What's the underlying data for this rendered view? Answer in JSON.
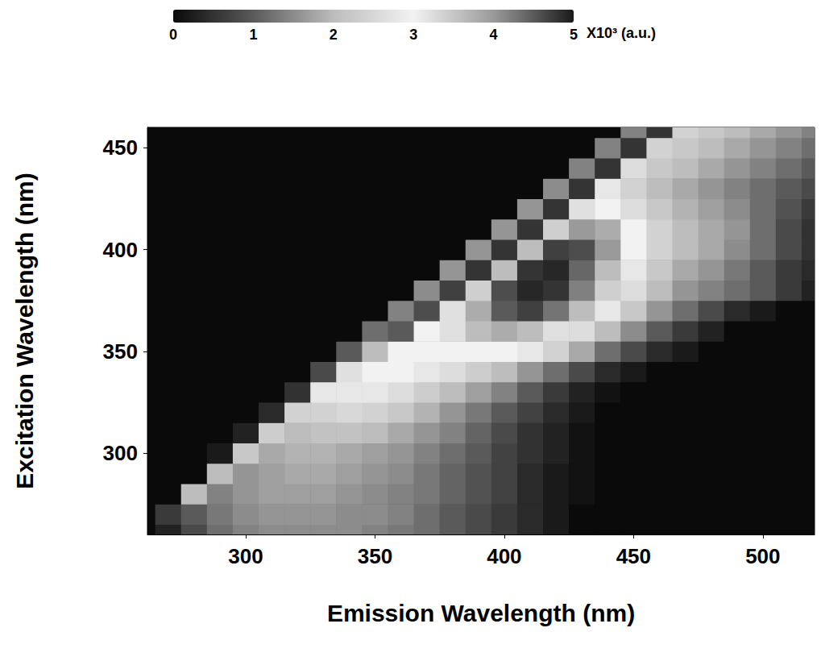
{
  "chart_data": {
    "type": "heatmap",
    "xlabel": "Emission Wavelength (nm)",
    "ylabel": "Excitation Wavelength (nm)",
    "xlim": [
      262,
      520
    ],
    "xticks": [
      300,
      350,
      400,
      450,
      500
    ],
    "ylim": [
      260,
      460
    ],
    "yticks": [
      300,
      350,
      400,
      450
    ],
    "grid": false,
    "emission": [
      270,
      280,
      290,
      300,
      310,
      320,
      330,
      340,
      350,
      360,
      370,
      380,
      390,
      400,
      410,
      420,
      430,
      440,
      450,
      460,
      470,
      480,
      490,
      500,
      510,
      520
    ],
    "excitation": [
      260,
      270,
      280,
      290,
      300,
      310,
      320,
      330,
      340,
      350,
      360,
      370,
      380,
      390,
      400,
      410,
      420,
      430,
      440,
      450,
      460
    ],
    "intensity": [
      [
        0.3,
        0.8,
        1.2,
        1.4,
        1.5,
        1.5,
        1.5,
        1.5,
        1.4,
        1.3,
        1.2,
        1.0,
        0.8,
        0.6,
        0.4,
        0.2,
        0,
        0,
        0,
        0,
        0,
        0,
        0,
        0,
        0,
        0
      ],
      [
        0.6,
        1.0,
        1.3,
        1.5,
        1.6,
        1.6,
        1.6,
        1.5,
        1.5,
        1.4,
        1.2,
        1.0,
        0.8,
        0.6,
        0.4,
        0.2,
        0,
        0,
        0,
        0,
        0,
        0,
        0,
        0,
        0,
        0
      ],
      [
        0,
        2.0,
        1.4,
        1.6,
        1.7,
        1.7,
        1.7,
        1.6,
        1.5,
        1.4,
        1.3,
        1.1,
        0.9,
        0.7,
        0.4,
        0.2,
        0.1,
        0,
        0,
        0,
        0,
        0,
        0,
        0,
        0,
        0
      ],
      [
        0,
        0,
        2.0,
        1.6,
        1.7,
        1.8,
        1.8,
        1.7,
        1.6,
        1.5,
        1.3,
        1.1,
        0.9,
        0.7,
        0.4,
        0.2,
        0.1,
        0,
        0,
        0,
        0,
        0,
        0,
        0,
        0,
        0
      ],
      [
        0,
        0,
        0.2,
        2.2,
        1.8,
        1.9,
        1.9,
        1.8,
        1.7,
        1.6,
        1.4,
        1.2,
        1.0,
        0.7,
        0.5,
        0.3,
        0.1,
        0,
        0,
        0,
        0,
        0,
        0,
        0,
        0,
        0
      ],
      [
        0,
        0,
        0,
        0.3,
        2.3,
        2.0,
        2.1,
        2.1,
        2.0,
        1.8,
        1.6,
        1.4,
        1.1,
        0.8,
        0.5,
        0.3,
        0.1,
        0,
        0,
        0,
        0,
        0,
        0,
        0,
        0,
        0
      ],
      [
        0,
        0,
        0,
        0,
        0.4,
        2.4,
        2.4,
        2.5,
        2.4,
        2.2,
        1.9,
        1.6,
        1.3,
        1.0,
        0.7,
        0.4,
        0.2,
        0,
        0,
        0,
        0,
        0,
        0,
        0,
        0,
        0
      ],
      [
        0,
        0,
        0,
        0,
        0,
        0.5,
        2.8,
        2.8,
        2.8,
        2.6,
        2.3,
        2.0,
        1.7,
        1.4,
        1.0,
        0.6,
        0.3,
        0.1,
        0,
        0,
        0,
        0,
        0,
        0,
        0,
        0
      ],
      [
        0,
        0,
        0,
        0,
        0,
        0,
        0.8,
        3.2,
        3.0,
        3.0,
        2.8,
        2.6,
        2.3,
        2.0,
        1.6,
        1.2,
        0.8,
        0.4,
        0.2,
        0,
        0,
        0,
        0,
        0,
        0,
        0
      ],
      [
        0,
        0,
        0,
        0,
        0,
        0,
        0,
        1.0,
        3.6,
        3.0,
        3.0,
        3.0,
        3.0,
        3.0,
        2.8,
        2.4,
        1.8,
        1.2,
        0.8,
        0.4,
        0.2,
        0,
        0,
        0,
        0,
        0
      ],
      [
        0,
        0,
        0,
        0,
        0,
        0,
        0,
        0,
        1.2,
        4.5,
        3.0,
        3.2,
        3.6,
        3.8,
        3.6,
        3.2,
        2.6,
        2.0,
        1.5,
        1.0,
        0.6,
        0.3,
        0,
        0,
        0,
        0
      ],
      [
        0,
        0,
        0,
        0,
        0,
        0,
        0,
        0,
        0,
        1.4,
        4.6,
        3.2,
        3.8,
        4.5,
        4.7,
        4.3,
        3.6,
        2.8,
        2.2,
        1.6,
        1.2,
        0.8,
        0.4,
        0.2,
        0,
        0
      ],
      [
        0,
        0,
        0,
        0,
        0,
        0,
        0,
        0,
        0,
        0,
        1.5,
        4.7,
        3.4,
        4.6,
        4.9,
        4.8,
        4.2,
        3.4,
        2.6,
        2.0,
        1.6,
        1.4,
        1.2,
        1.0,
        0.6,
        0.3
      ],
      [
        0,
        0,
        0,
        0,
        0,
        0,
        0,
        0,
        0,
        0,
        0,
        1.6,
        4.8,
        3.6,
        4.8,
        4.9,
        4.4,
        3.6,
        2.8,
        2.2,
        1.8,
        1.6,
        1.3,
        1.0,
        0.6,
        0.4
      ],
      [
        0,
        0,
        0,
        0,
        0,
        0,
        0,
        0,
        0,
        0,
        0,
        0,
        1.6,
        4.8,
        3.6,
        4.7,
        4.6,
        4.0,
        3.0,
        2.4,
        2.0,
        1.8,
        1.5,
        1.2,
        0.8,
        0.5
      ],
      [
        0,
        0,
        0,
        0,
        0,
        0,
        0,
        0,
        0,
        0,
        0,
        0,
        0,
        1.6,
        4.8,
        3.4,
        4.0,
        3.8,
        3.0,
        2.4,
        2.0,
        1.8,
        1.6,
        1.2,
        0.8,
        0.5
      ],
      [
        0,
        0,
        0,
        0,
        0,
        0,
        0,
        0,
        0,
        0,
        0,
        0,
        0,
        0,
        1.6,
        4.8,
        3.2,
        3.0,
        2.6,
        2.2,
        1.9,
        1.7,
        1.5,
        1.2,
        0.9,
        0.6
      ],
      [
        0,
        0,
        0,
        0,
        0,
        0,
        0,
        0,
        0,
        0,
        0,
        0,
        0,
        0,
        0,
        1.5,
        4.8,
        2.8,
        2.4,
        2.0,
        1.8,
        1.6,
        1.4,
        1.2,
        1.0,
        0.8
      ],
      [
        0,
        0,
        0,
        0,
        0,
        0,
        0,
        0,
        0,
        0,
        0,
        0,
        0,
        0,
        0,
        0,
        1.4,
        4.8,
        2.6,
        2.2,
        2.0,
        1.8,
        1.6,
        1.4,
        1.2,
        1.0
      ],
      [
        0,
        0,
        0,
        0,
        0,
        0,
        0,
        0,
        0,
        0,
        0,
        0,
        0,
        0,
        0,
        0,
        0,
        1.4,
        4.8,
        2.4,
        2.2,
        2.0,
        1.8,
        1.6,
        1.4,
        1.2
      ],
      [
        0,
        0,
        0,
        0,
        0,
        0,
        0,
        0,
        0,
        0,
        0,
        0,
        0,
        0,
        0,
        0,
        0,
        0,
        1.4,
        4.8,
        2.4,
        2.2,
        2.0,
        1.8,
        1.6,
        1.4
      ]
    ],
    "colorbar": {
      "label": "X10³ (a.u.)",
      "range": [
        0,
        5
      ],
      "ticks": [
        0,
        1,
        2,
        3,
        4,
        5
      ]
    }
  }
}
